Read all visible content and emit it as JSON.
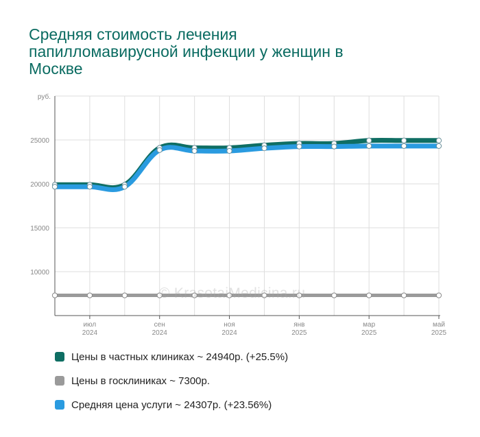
{
  "page": {
    "title": "Средняя стоимость лечения папилломавирусной инфекции у женщин в Москве",
    "watermark": "© KrasotaiMedicina.ru"
  },
  "colors": {
    "private": "#0f6e63",
    "state": "#9a9a9a",
    "average": "#2a9be0"
  },
  "chart_data": {
    "type": "line",
    "title": "Средняя стоимость лечения папилломавирусной инфекции у женщин в Москве",
    "ylabel": "руб.",
    "ylim": [
      5000,
      30000
    ],
    "yticks": [
      10000,
      15000,
      20000,
      25000
    ],
    "ytick_labels": [
      "10000",
      "15000",
      "20000",
      "25000"
    ],
    "grid": true,
    "legend_position": "bottom",
    "x": [
      "2024-06",
      "2024-07",
      "2024-08",
      "2024-09",
      "2024-10",
      "2024-11",
      "2024-12",
      "2025-01",
      "2025-02",
      "2025-03",
      "2025-04",
      "2025-05"
    ],
    "x_ticks": [
      {
        "index": 1,
        "month": "июл",
        "year": "2024"
      },
      {
        "index": 3,
        "month": "сен",
        "year": "2024"
      },
      {
        "index": 5,
        "month": "ноя",
        "year": "2024"
      },
      {
        "index": 7,
        "month": "янв",
        "year": "2025"
      },
      {
        "index": 9,
        "month": "мар",
        "year": "2025"
      },
      {
        "index": 11,
        "month": "май",
        "year": "2025"
      }
    ],
    "series": [
      {
        "key": "private",
        "name": "Цены в частных клиниках ~ 24940р. (+25.5%)",
        "values": [
          19900,
          19900,
          19900,
          24100,
          24100,
          24100,
          24400,
          24600,
          24600,
          24940,
          24940,
          24940
        ]
      },
      {
        "key": "state",
        "name": "Цены в госклиниках ~ 7300р.",
        "values": [
          7300,
          7300,
          7300,
          7300,
          7300,
          7300,
          7300,
          7300,
          7300,
          7300,
          7300,
          7300
        ]
      },
      {
        "key": "average",
        "name": "Средняя цена услуги ~ 24307р. (+23.56%)",
        "values": [
          19670,
          19670,
          19670,
          23850,
          23750,
          23750,
          24050,
          24250,
          24250,
          24307,
          24307,
          24307
        ]
      }
    ]
  }
}
